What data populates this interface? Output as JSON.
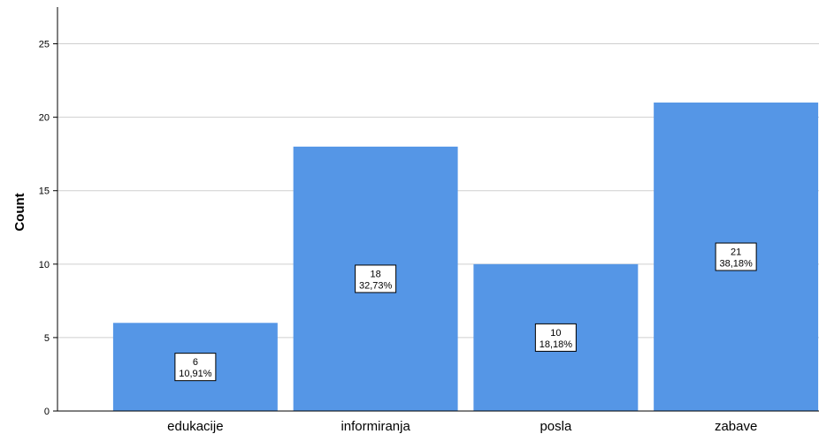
{
  "chart_data": {
    "type": "bar",
    "categories": [
      "edukacije",
      "informiranja",
      "posla",
      "zabave"
    ],
    "values": [
      6,
      18,
      10,
      21
    ],
    "percent_labels": [
      "10,91%",
      "32,73%",
      "18,18%",
      "38,18%"
    ],
    "title": "",
    "xlabel": "",
    "ylabel": "Count",
    "ylim": [
      0,
      27.5
    ],
    "yticks": [
      0,
      5,
      10,
      15,
      20,
      25
    ],
    "grid": true,
    "legend": "none",
    "bar_color": "#5596e6",
    "gridline_color": "#cfcfcf"
  }
}
